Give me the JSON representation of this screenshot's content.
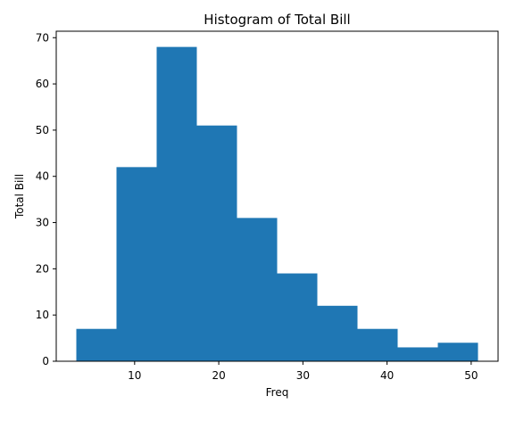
{
  "chart_data": {
    "type": "bar",
    "title": "Histogram of Total Bill",
    "xlabel": "Freq",
    "ylabel": "Total Bill",
    "bin_edges": [
      3.07,
      7.844,
      12.618,
      17.392,
      22.166,
      26.94,
      31.714,
      36.488,
      41.262,
      46.036,
      50.81
    ],
    "values": [
      7,
      42,
      68,
      51,
      31,
      19,
      12,
      7,
      3,
      4
    ],
    "xlim": [
      0.683,
      53.197
    ],
    "ylim": [
      0,
      71.4
    ],
    "xticks": [
      10,
      20,
      30,
      40,
      50
    ],
    "yticks": [
      0,
      10,
      20,
      30,
      40,
      50,
      60,
      70
    ],
    "bar_color": "#1f77b4",
    "grid": false,
    "legend": "none"
  }
}
